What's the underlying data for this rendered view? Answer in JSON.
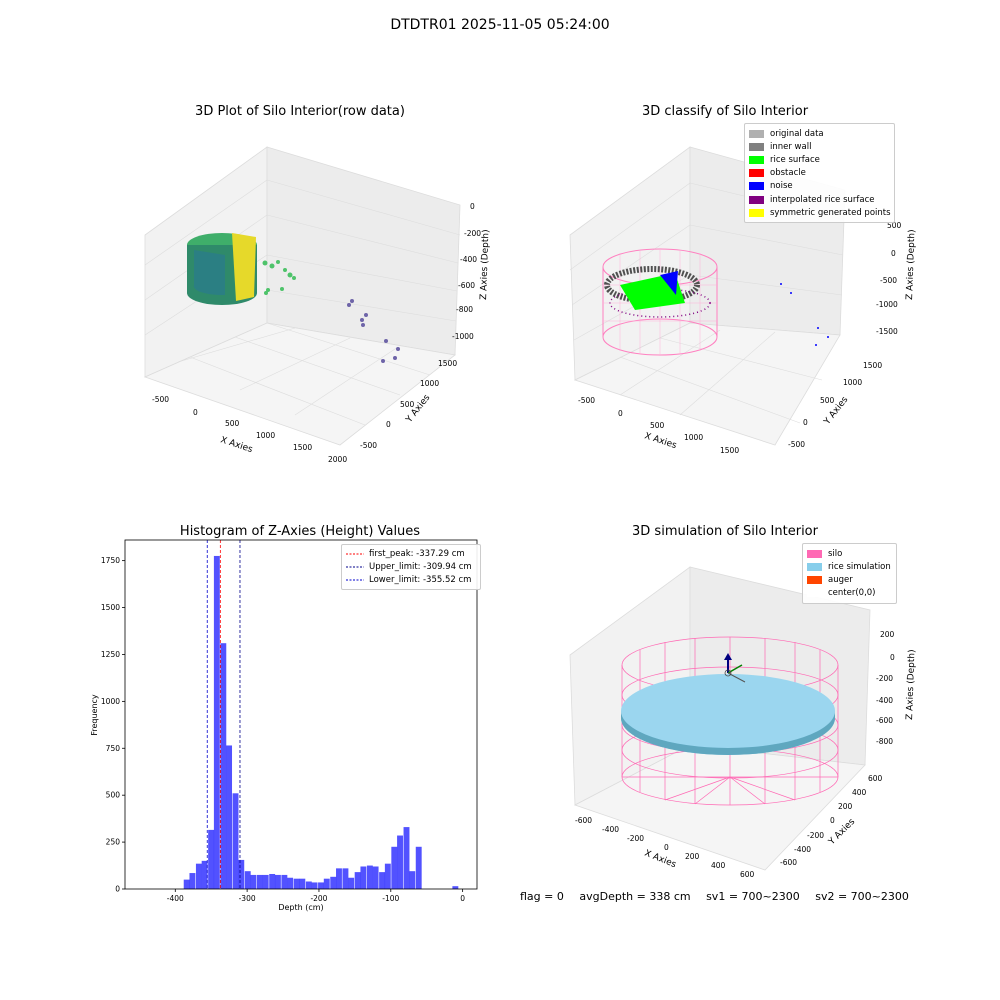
{
  "suptitle": "DTDTR01 2025-11-05 05:24:00",
  "panel_tl": {
    "title": "3D Plot of Silo Interior(row data)",
    "xlabel": "X Axies",
    "ylabel": "Y Axies",
    "zlabel": "Z Axies (Depth)",
    "xticks": [
      "-500",
      "0",
      "500",
      "1000",
      "1500",
      "2000"
    ],
    "yticks": [
      "-500",
      "0",
      "500",
      "1000",
      "1500"
    ],
    "zticks": [
      "0",
      "-200",
      "-400",
      "-600",
      "-800",
      "-1000"
    ]
  },
  "panel_tr": {
    "title": "3D classify of Silo Interior",
    "xlabel": "X Axies",
    "ylabel": "Y Axies",
    "zlabel": "Z Axies (Depth)",
    "xticks": [
      "-500",
      "0",
      "500",
      "1000",
      "1500"
    ],
    "yticks": [
      "-500",
      "0",
      "500",
      "1000",
      "1500"
    ],
    "zticks": [
      "500",
      "0",
      "-500",
      "-1000",
      "-1500"
    ],
    "legend": [
      {
        "label": "original data",
        "color": "#b0b0b0"
      },
      {
        "label": "inner wall",
        "color": "#808080"
      },
      {
        "label": "rice surface",
        "color": "#00ff00"
      },
      {
        "label": "obstacle",
        "color": "#ff0000"
      },
      {
        "label": "noise",
        "color": "#0000ff"
      },
      {
        "label": "interpolated rice surface",
        "color": "#800080"
      },
      {
        "label": "symmetric generated points",
        "color": "#ffff00"
      }
    ]
  },
  "panel_br": {
    "title": "3D simulation of Silo Interior",
    "xlabel": "X Axies",
    "ylabel": "Y Axies",
    "zlabel": "Z Axies (Depth)",
    "xticks": [
      "-600",
      "-400",
      "-200",
      "0",
      "200",
      "400",
      "600"
    ],
    "yticks": [
      "-600",
      "-400",
      "-200",
      "0",
      "200",
      "400",
      "600"
    ],
    "zticks": [
      "200",
      "0",
      "-200",
      "-400",
      "-600",
      "-800"
    ],
    "legend": [
      {
        "label": "silo",
        "color": "#ff69b4"
      },
      {
        "label": "rice simulation",
        "color": "#87ceeb"
      },
      {
        "label": "auger",
        "color": "#ff4500"
      },
      {
        "label": "center(0,0)",
        "color": "#ffffff"
      }
    ]
  },
  "footer": {
    "flag": "flag = 0",
    "avg": "avgDepth = 338 cm",
    "sv1": "sv1 = 700~2300",
    "sv2": "sv2 = 700~2300"
  },
  "chart_data": {
    "type": "bar",
    "title": "Histogram of Z-Axies (Height) Values",
    "xlabel": "Depth (cm)",
    "ylabel": "Frequency",
    "xlim": [
      -470,
      20
    ],
    "ylim": [
      0,
      1860
    ],
    "xticks": [
      -400,
      -300,
      -200,
      -100,
      0
    ],
    "yticks": [
      0,
      250,
      500,
      750,
      1000,
      1250,
      1500,
      1750
    ],
    "bar_color": "#0000ff",
    "bin_width": 8.5,
    "bins": [
      {
        "x": -384,
        "value": 50
      },
      {
        "x": -376,
        "value": 85
      },
      {
        "x": -367,
        "value": 135
      },
      {
        "x": -359,
        "value": 150
      },
      {
        "x": -350,
        "value": 315
      },
      {
        "x": -342,
        "value": 1775
      },
      {
        "x": -333,
        "value": 1310
      },
      {
        "x": -325,
        "value": 765
      },
      {
        "x": -316,
        "value": 510
      },
      {
        "x": -308,
        "value": 155
      },
      {
        "x": -299,
        "value": 95
      },
      {
        "x": -291,
        "value": 75
      },
      {
        "x": -282,
        "value": 75
      },
      {
        "x": -274,
        "value": 75
      },
      {
        "x": -265,
        "value": 80
      },
      {
        "x": -257,
        "value": 75
      },
      {
        "x": -248,
        "value": 75
      },
      {
        "x": -240,
        "value": 60
      },
      {
        "x": -231,
        "value": 55
      },
      {
        "x": -223,
        "value": 55
      },
      {
        "x": -214,
        "value": 40
      },
      {
        "x": -206,
        "value": 35
      },
      {
        "x": -197,
        "value": 35
      },
      {
        "x": -189,
        "value": 55
      },
      {
        "x": -180,
        "value": 65
      },
      {
        "x": -172,
        "value": 110
      },
      {
        "x": -163,
        "value": 110
      },
      {
        "x": -155,
        "value": 60
      },
      {
        "x": -146,
        "value": 90
      },
      {
        "x": -138,
        "value": 120
      },
      {
        "x": -129,
        "value": 125
      },
      {
        "x": -121,
        "value": 120
      },
      {
        "x": -112,
        "value": 90
      },
      {
        "x": -104,
        "value": 135
      },
      {
        "x": -95,
        "value": 225
      },
      {
        "x": -87,
        "value": 285
      },
      {
        "x": -78,
        "value": 330
      },
      {
        "x": -70,
        "value": 95
      },
      {
        "x": -61,
        "value": 225
      },
      {
        "x": -10,
        "value": 15
      }
    ],
    "lines": [
      {
        "name": "first_peak: -337.29 cm",
        "x": -337.29,
        "color": "#ff0000"
      },
      {
        "name": "Upper_limit: -309.94 cm",
        "x": -309.94,
        "color": "#00008b"
      },
      {
        "name": "Lower_limit: -355.52 cm",
        "x": -355.52,
        "color": "#0000cd"
      }
    ],
    "legend_position": "upper right"
  }
}
